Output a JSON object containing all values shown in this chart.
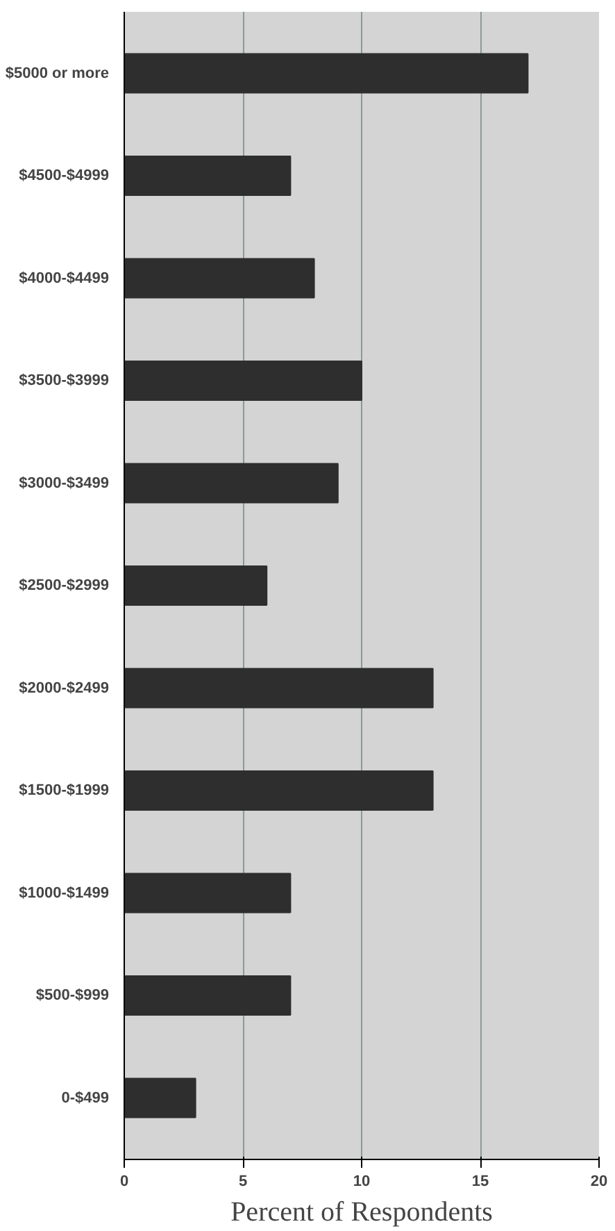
{
  "chart_data": {
    "type": "bar",
    "orientation": "horizontal",
    "xlabel": "Percent of Respondents",
    "categories": [
      "$5000 or more",
      "$4500-$4999",
      "$4000-$4499",
      "$3500-$3999",
      "$3000-$3499",
      "$2500-$2999",
      "$2000-$2499",
      "$1500-$1999",
      "$1000-$1499",
      "$500-$999",
      "0-$499"
    ],
    "values": [
      17,
      7,
      8,
      10,
      9,
      6,
      13,
      13,
      7,
      7,
      3
    ],
    "color": "#2e2e2e",
    "xlim": [
      0,
      20
    ],
    "xticks": [
      0,
      5,
      10,
      15,
      20
    ],
    "grid": "x"
  }
}
